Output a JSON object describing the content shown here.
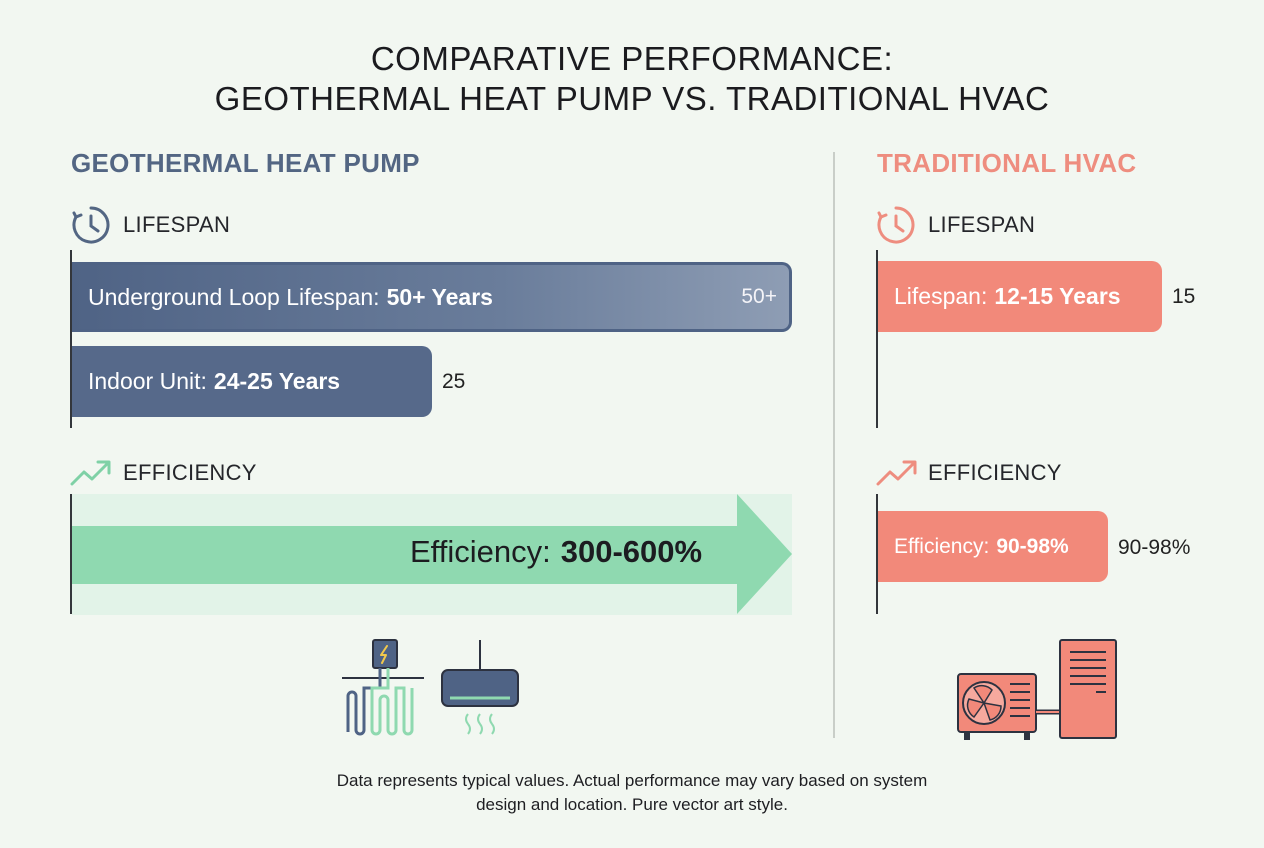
{
  "title_line1": "COMPARATIVE PERFORMANCE:",
  "title_line2": "GEOTHERMAL HEAT PUMP VS. TRADITIONAL HVAC",
  "colors": {
    "geo": "#536683",
    "geo_efficiency": "#8fd9b0",
    "traditional": "#f2897a"
  },
  "chart_data": [
    {
      "type": "bar",
      "panel": "geothermal-lifespan",
      "column_title": "GEOTHERMAL HEAT PUMP",
      "section": "LIFESPAN",
      "unit": "Years",
      "categories": [
        "Underground Loop Lifespan",
        "Indoor Unit"
      ],
      "values": [
        50,
        25
      ],
      "category_labels": [
        "Underground Loop Lifespan:",
        "Indoor Unit:"
      ],
      "value_labels": [
        "50+ Years",
        "24-25 Years"
      ],
      "end_labels": [
        "50+",
        "25"
      ]
    },
    {
      "type": "bar",
      "panel": "geothermal-efficiency",
      "section": "EFFICIENCY",
      "categories": [
        "Efficiency"
      ],
      "values": [
        600
      ],
      "category_labels": [
        "Efficiency:"
      ],
      "value_labels": [
        "300-600%"
      ]
    },
    {
      "type": "bar",
      "panel": "traditional-lifespan",
      "column_title": "TRADITIONAL HVAC",
      "section": "LIFESPAN",
      "unit": "Years",
      "categories": [
        "Lifespan"
      ],
      "values": [
        15
      ],
      "category_labels": [
        "Lifespan:"
      ],
      "value_labels": [
        "12-15 Years"
      ],
      "end_labels": [
        "15"
      ]
    },
    {
      "type": "bar",
      "panel": "traditional-efficiency",
      "section": "EFFICIENCY",
      "categories": [
        "Efficiency"
      ],
      "values": [
        98
      ],
      "category_labels": [
        "Efficiency:"
      ],
      "value_labels": [
        "90-98%"
      ],
      "end_labels": [
        "90-98%"
      ]
    }
  ],
  "icons": {
    "lifespan": "clock-icon",
    "efficiency": "trend-up-icon",
    "geothermal": "ground-loop-icon",
    "indoor": "mini-split-icon",
    "traditional": "outdoor-ac-furnace-icon"
  },
  "footnote_line1": "Data represents typical values. Actual performance may vary based on system",
  "footnote_line2": "design and location. Pure vector art style."
}
